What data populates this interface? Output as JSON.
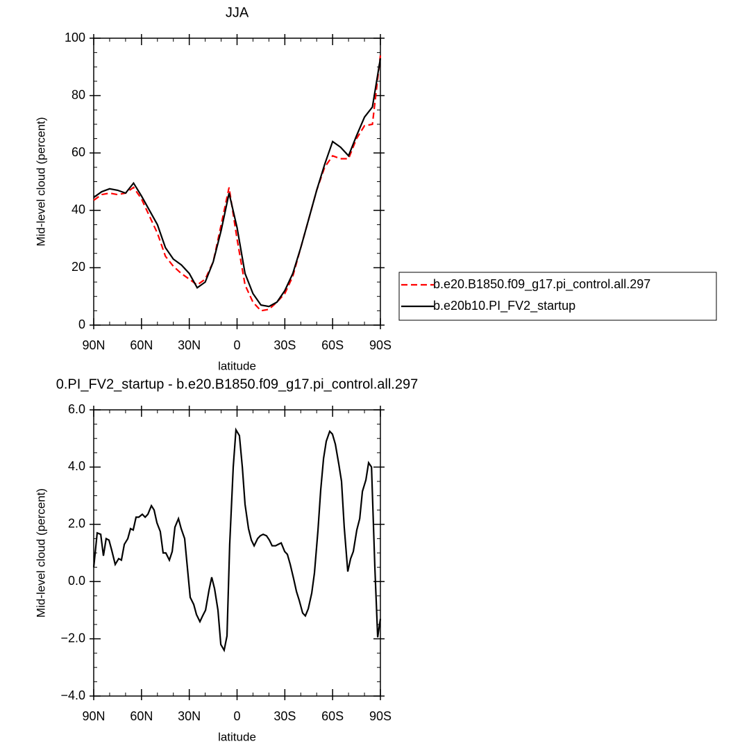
{
  "chart_data": [
    {
      "type": "line",
      "title": "JJA",
      "xlabel": "latitude",
      "ylabel": "Mid-level cloud (percent)",
      "x": [
        90,
        85,
        80,
        75,
        70,
        65,
        60,
        55,
        50,
        45,
        40,
        35,
        30,
        25,
        20,
        15,
        10,
        5,
        0,
        -5,
        -10,
        -15,
        -20,
        -25,
        -30,
        -35,
        -40,
        -45,
        -50,
        -55,
        -60,
        -65,
        -70,
        -75,
        -80,
        -85,
        -90
      ],
      "series": [
        {
          "name": "b.e20.B1850.f09_g17.pi_control.all.297",
          "color": "#ff0000",
          "line_style": "dashed",
          "values": [
            43.5,
            45.5,
            46,
            45.5,
            46,
            48,
            44,
            38,
            32,
            24,
            20.5,
            18,
            16,
            14,
            16,
            22,
            35,
            48,
            30,
            14,
            8,
            5,
            5.5,
            8,
            11,
            17,
            27,
            37,
            47,
            55,
            59,
            58,
            58,
            65,
            69.5,
            70,
            94
          ]
        },
        {
          "name": "b.e20b10.PI_FV2_startup",
          "color": "#000000",
          "line_style": "solid",
          "values": [
            44.5,
            46.5,
            47.5,
            47,
            46,
            49.5,
            45,
            40,
            35,
            27,
            23,
            21,
            18,
            13,
            15,
            22,
            33,
            46,
            34,
            18,
            11,
            7,
            6.5,
            8,
            12,
            18,
            27,
            37,
            47,
            56,
            64,
            62,
            59,
            66,
            72.5,
            76,
            93
          ]
        }
      ],
      "xlim": [
        90,
        -90
      ],
      "xticks": [
        {
          "value": 90,
          "label": "90N"
        },
        {
          "value": 60,
          "label": "60N"
        },
        {
          "value": 30,
          "label": "30N"
        },
        0,
        {
          "value": -30,
          "label": "30S"
        },
        {
          "value": -60,
          "label": "60S"
        },
        {
          "value": -90,
          "label": "90S"
        }
      ],
      "ylim": [
        0,
        100
      ],
      "yticks": [
        0,
        20,
        40,
        60,
        80,
        100
      ],
      "legend": "right"
    },
    {
      "type": "line",
      "title": "0.PI_FV2_startup - b.e20.B1850.f09_g17.pi_control.all.297",
      "xlabel": "latitude",
      "ylabel": "Mid-level cloud (percent)",
      "x": [
        90,
        87.8,
        85.6,
        83.9,
        82.2,
        80.4,
        78.7,
        76.5,
        74.3,
        72.6,
        70.8,
        68.6,
        66.9,
        65.2,
        63.4,
        61.7,
        59.5,
        57.7,
        56,
        53.8,
        52.1,
        50.3,
        48.2,
        46.4,
        44.7,
        42.5,
        40.7,
        39,
        36.8,
        35.1,
        32.9,
        31.2,
        29.4,
        27.2,
        25.5,
        23.3,
        21.6,
        19.8,
        17.6,
        15.9,
        14.1,
        12,
        10.2,
        8.1,
        6.3,
        4.6,
        2.4,
        0.7,
        -1.5,
        -3.3,
        -5,
        -7.2,
        -9,
        -10.7,
        -12.9,
        -14.6,
        -16.4,
        -18.5,
        -20.3,
        -22,
        -24.2,
        -25.9,
        -27.7,
        -29.9,
        -31.6,
        -33.4,
        -35.5,
        -37.3,
        -39,
        -41.2,
        -42.9,
        -44.7,
        -46.9,
        -48.6,
        -50.8,
        -52.5,
        -54.3,
        -56,
        -58.2,
        -59.9,
        -61.7,
        -63.9,
        -65.6,
        -67.3,
        -69.5,
        -71.3,
        -73,
        -75.2,
        -77,
        -78.7,
        -80.9,
        -82.6,
        -84.4,
        -86.5,
        -88.3,
        -90
      ],
      "values": [
        0.5,
        1.7,
        1.65,
        0.9,
        1.5,
        1.45,
        1.1,
        0.6,
        0.8,
        0.75,
        1.3,
        1.5,
        1.85,
        1.8,
        2.25,
        2.25,
        2.35,
        2.25,
        2.35,
        2.65,
        2.5,
        2.05,
        1.75,
        1.0,
        1.0,
        0.75,
        1.05,
        1.9,
        2.2,
        1.85,
        1.5,
        0.5,
        -0.55,
        -0.8,
        -1.15,
        -1.4,
        -1.2,
        -1.0,
        -0.3,
        0.15,
        -0.25,
        -1.0,
        -2.2,
        -2.4,
        -1.9,
        1.3,
        4.0,
        5.3,
        5.1,
        4.0,
        2.7,
        1.85,
        1.45,
        1.25,
        1.5,
        1.6,
        1.65,
        1.6,
        1.45,
        1.25,
        1.25,
        1.3,
        1.35,
        1.05,
        0.95,
        0.6,
        0.1,
        -0.35,
        -0.65,
        -1.1,
        -1.2,
        -0.95,
        -0.4,
        0.3,
        1.8,
        3.2,
        4.3,
        4.9,
        5.25,
        5.15,
        4.8,
        4.1,
        3.5,
        1.9,
        0.35,
        0.8,
        1.05,
        1.8,
        2.2,
        3.15,
        3.55,
        4.15,
        4.0,
        0.5,
        -1.95,
        -1.3
      ],
      "color": "#000000",
      "line_style": "solid",
      "xlim": [
        90,
        -90
      ],
      "xticks": [
        {
          "value": 90,
          "label": "90N"
        },
        {
          "value": 60,
          "label": "60N"
        },
        {
          "value": 30,
          "label": "30N"
        },
        0,
        {
          "value": -30,
          "label": "30S"
        },
        {
          "value": -60,
          "label": "60S"
        },
        {
          "value": -90,
          "label": "90S"
        }
      ],
      "ylim": [
        -4,
        6
      ],
      "yticks": [
        {
          "value": -4,
          "label": "−4.0"
        },
        {
          "value": -2,
          "label": "−2.0"
        },
        {
          "value": 0,
          "label": "0.0"
        },
        {
          "value": 2,
          "label": "2.0"
        },
        {
          "value": 4,
          "label": "4.0"
        },
        {
          "value": 6,
          "label": "6.0"
        }
      ]
    }
  ]
}
